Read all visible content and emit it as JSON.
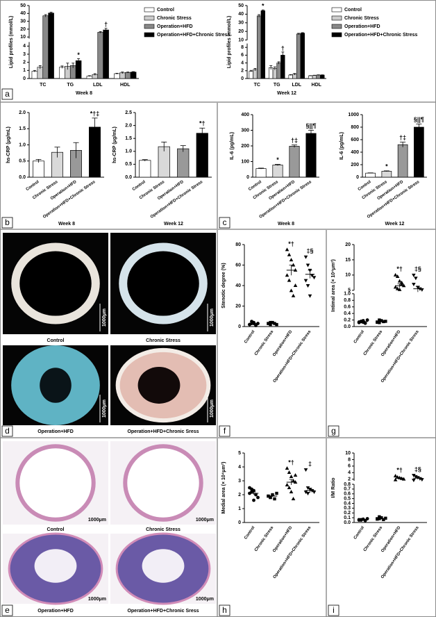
{
  "figure": {
    "panel_letters": [
      "a",
      "b",
      "c",
      "d",
      "e",
      "f",
      "g",
      "h",
      "i"
    ],
    "photos": [
      {
        "caption": "Control",
        "scale_bar": "1000μm"
      },
      {
        "caption": "Chronic Stress",
        "scale_bar": "1000μm"
      },
      {
        "caption": "Operation+HFD",
        "scale_bar": "1000μm"
      },
      {
        "caption": "Operation+HFD+Chronic Sress",
        "scale_bar": "1000μm"
      },
      {
        "caption": "Control",
        "scale_bar": "1000μm"
      },
      {
        "caption": "Chronic Stress",
        "scale_bar": "1000μm"
      },
      {
        "caption": "Operation+HFD",
        "scale_bar": "1000μm"
      },
      {
        "caption": "Operation+HFD+Chronic Sress",
        "scale_bar": "1000μm"
      }
    ]
  },
  "chart_data": [
    {
      "type": "grouped_bar",
      "ylabel": "Lipid profiles (mmol/L)",
      "xlabel": "Week 8",
      "categories": [
        "TC",
        "TG",
        "LDL",
        "HDL"
      ],
      "ylim": [
        0,
        50
      ],
      "axis_break": [
        4.5,
        8
      ],
      "yticks": [
        0,
        1,
        2,
        3,
        4,
        10,
        20,
        30,
        40,
        50
      ],
      "legend": "right",
      "series": [
        {
          "name": "Control",
          "color": "#ffffff",
          "values": [
            0.9,
            1.4,
            0.3,
            0.6
          ],
          "errors": [
            0.1,
            0.15,
            0.05,
            0.05
          ]
        },
        {
          "name": "Chronic Stress",
          "color": "#cccccc",
          "values": [
            1.4,
            1.5,
            0.5,
            0.7
          ],
          "errors": [
            0.2,
            0.4,
            0.1,
            0.1
          ]
        },
        {
          "name": "Operation+HFD",
          "color": "#888888",
          "values": [
            37,
            1.6,
            16,
            0.75
          ],
          "errors": [
            1.5,
            0.3,
            1,
            0.05
          ]
        },
        {
          "name": "Operation+HFD+Chronic Stress",
          "color": "#000000",
          "values": [
            40.5,
            2.2,
            19,
            0.8
          ],
          "errors": [
            1,
            0.25,
            2,
            0.05
          ],
          "annotations": [
            null,
            "*",
            "†",
            null
          ]
        }
      ]
    },
    {
      "type": "grouped_bar",
      "ylabel": "Lipid profiles (mmol/L)",
      "xlabel": "Week 12",
      "categories": [
        "TC",
        "TG",
        "LDL",
        "HDL"
      ],
      "ylim": [
        0,
        50
      ],
      "axis_break": [
        9,
        10
      ],
      "yticks": [
        0,
        2,
        4,
        6,
        8,
        10,
        20,
        30,
        40,
        50
      ],
      "legend": "right",
      "series": [
        {
          "name": "Control",
          "color": "#ffffff",
          "values": [
            1.9,
            2.8,
            0.9,
            0.7
          ],
          "errors": [
            0.2,
            0.5,
            0.1,
            0.05
          ]
        },
        {
          "name": "Chronic Stress",
          "color": "#cccccc",
          "values": [
            2.3,
            2.6,
            1.1,
            0.8
          ],
          "errors": [
            0.3,
            0.4,
            0.2,
            0.05
          ]
        },
        {
          "name": "Operation+HFD",
          "color": "#888888",
          "values": [
            38,
            4.0,
            17,
            0.9
          ],
          "errors": [
            1.5,
            0.3,
            0.8,
            0.05
          ]
        },
        {
          "name": "Operation+HFD+Chronic Stress",
          "color": "#000000",
          "values": [
            44,
            6.0,
            18,
            0.9
          ],
          "errors": [
            1,
            0.8,
            0.6,
            0.05
          ],
          "annotations": [
            "*",
            "†",
            null,
            null
          ]
        }
      ]
    },
    {
      "type": "bar",
      "ylabel": "hs-CRP (μg/mL)",
      "xlabel": "Week 8",
      "categories": [
        "Control",
        "Chronic Stress",
        "Operation+HFD",
        "Operation+HFD+Chronic Stress"
      ],
      "values": [
        0.5,
        0.77,
        0.83,
        1.55
      ],
      "errors": [
        0.05,
        0.16,
        0.24,
        0.28
      ],
      "colors": [
        "#ffffff",
        "#d9d9d9",
        "#999999",
        "#000000"
      ],
      "ylim": [
        0,
        2
      ],
      "yticks": [
        {
          "value": 0,
          "label": "0.0"
        },
        0.5,
        {
          "value": 1,
          "label": "1.0"
        },
        1.5,
        {
          "value": 2,
          "label": "2.0"
        }
      ],
      "annotations": [
        null,
        null,
        null,
        "*†‡"
      ]
    },
    {
      "type": "bar",
      "ylabel": "hs-CRP (μg/mL)",
      "xlabel": "Week 12",
      "categories": [
        "Control",
        "Chronic Stress",
        "Operation+HFD",
        "Operation+HFD+Chronic Stress"
      ],
      "values": [
        0.65,
        1.18,
        1.1,
        1.7
      ],
      "errors": [
        0.03,
        0.18,
        0.12,
        0.2
      ],
      "colors": [
        "#ffffff",
        "#d9d9d9",
        "#999999",
        "#000000"
      ],
      "ylim": [
        0,
        2.5
      ],
      "yticks": [
        {
          "value": 0,
          "label": "0.0"
        },
        0.5,
        {
          "value": 1,
          "label": "1.0"
        },
        1.5,
        {
          "value": 2,
          "label": "2.0"
        },
        2.5
      ],
      "annotations": [
        null,
        null,
        null,
        "*†"
      ]
    },
    {
      "type": "bar",
      "ylabel": "IL-6 (pg/mL)",
      "xlabel": "Week 8",
      "categories": [
        "Control",
        "Chronic Stress",
        "Operation+HFD",
        "Operation+HFD+Chronic Stress"
      ],
      "values": [
        55,
        78,
        198,
        280
      ],
      "errors": [
        3,
        4,
        8,
        20
      ],
      "colors": [
        "#ffffff",
        "#d9d9d9",
        "#999999",
        "#000000"
      ],
      "ylim": [
        0,
        400
      ],
      "yticks": [
        0,
        100,
        200,
        300,
        400
      ],
      "annotations": [
        null,
        "*",
        "†‡",
        "§||¶"
      ]
    },
    {
      "type": "bar",
      "ylabel": "IL-6 (pg/mL)",
      "xlabel": "Week 12",
      "categories": [
        "Control",
        "Chronic Stress",
        "Operation+HFD",
        "Operation+HFD+Chronic Stress"
      ],
      "values": [
        65,
        95,
        520,
        800
      ],
      "errors": [
        4,
        6,
        40,
        50
      ],
      "colors": [
        "#ffffff",
        "#d9d9d9",
        "#999999",
        "#000000"
      ],
      "ylim": [
        0,
        1000
      ],
      "yticks": [
        0,
        200,
        400,
        600,
        800,
        1000
      ],
      "annotations": [
        null,
        "*",
        "†‡",
        "§||¶"
      ]
    },
    {
      "type": "dotplot",
      "ylabel": "Stenotic degree (%)",
      "categories": [
        "Control",
        "Chronic Stress",
        "Operation+HFD",
        "Operation+HFD+Chronic Stress"
      ],
      "color": "#000000",
      "markers": [
        "circle",
        "square",
        "triangle",
        "triangle-down"
      ],
      "ylim": [
        0,
        80
      ],
      "yticks": [
        0,
        20,
        40,
        60,
        80
      ],
      "points": [
        [
          2,
          3,
          4,
          1,
          3,
          2,
          5,
          3
        ],
        [
          3,
          2,
          4,
          3,
          2,
          3,
          4
        ],
        [
          75,
          70,
          65,
          60,
          55,
          50,
          45,
          35,
          30,
          40
        ],
        [
          68,
          60,
          55,
          50,
          48,
          45,
          40,
          30
        ]
      ],
      "means": [
        3,
        3,
        55,
        51
      ],
      "errors": [
        0.5,
        0.5,
        5,
        4
      ],
      "annotations": [
        null,
        null,
        "*†",
        "‡§"
      ]
    },
    {
      "type": "dotplot",
      "ylabel": "Intimal area (× 10⁴μm²)",
      "categories": [
        "Control",
        "Chronic Stress",
        "Operation+HFD",
        "Operation+HFD+Chronic Stress"
      ],
      "color": "#000000",
      "markers": [
        "circle",
        "square",
        "triangle",
        "triangle-down"
      ],
      "ylim": [
        0,
        20
      ],
      "axis_break": [
        1,
        5
      ],
      "yticks": [
        {
          "value": 0,
          "label": "0.0"
        },
        0.2,
        0.4,
        0.6,
        0.8,
        {
          "value": 1,
          "label": "1.0"
        },
        5,
        10,
        15,
        20
      ],
      "points": [
        [
          0.12,
          0.15,
          0.18,
          0.1,
          0.2,
          0.14,
          0.16,
          0.13
        ],
        [
          0.14,
          0.12,
          0.18,
          0.15,
          0.16,
          0.13,
          0.2
        ],
        [
          10,
          9.5,
          8,
          7.5,
          6.5,
          6,
          5.5,
          5.2,
          7
        ],
        [
          10,
          9,
          6,
          5.5,
          5.2,
          7
        ]
      ],
      "means": [
        0.15,
        0.15,
        6.5,
        5.5
      ],
      "errors": [
        0.01,
        0.01,
        0.6,
        0.8
      ],
      "annotations": [
        null,
        null,
        "*†",
        "‡§"
      ]
    },
    {
      "type": "dotplot",
      "ylabel": "Medial area (× 10⁴μm²)",
      "categories": [
        "Control",
        "Chronic Stress",
        "Operation+HFD",
        "Operation+HFD+Chronic Stress"
      ],
      "color": "#000000",
      "markers": [
        "circle",
        "square",
        "triangle",
        "triangle-down"
      ],
      "ylim": [
        0,
        5
      ],
      "yticks": [
        0,
        1,
        2,
        3,
        4,
        5
      ],
      "points": [
        [
          2.1,
          2.2,
          2.3,
          2,
          1.8,
          2.5,
          2.4,
          1.6
        ],
        [
          1.9,
          1.8,
          2,
          1.7,
          2.1,
          1.9,
          1.8
        ],
        [
          3.9,
          3.6,
          3.3,
          3,
          2.9,
          2.7,
          2.5,
          2.2,
          1.7,
          3.4
        ],
        [
          3.8,
          2.5,
          2.4,
          2.3,
          2.2,
          2.2,
          2.1
        ]
      ],
      "means": [
        2.1,
        1.9,
        2.9,
        2.3
      ],
      "errors": [
        0.1,
        0.05,
        0.2,
        0.15
      ],
      "annotations": [
        null,
        null,
        "*†",
        "‡"
      ]
    },
    {
      "type": "dotplot",
      "ylabel": "I/M Ratio",
      "categories": [
        "Control",
        "Chronic Stress",
        "Operation+HFD",
        "Operation+HFD+Chronic Stress"
      ],
      "color": "#000000",
      "markers": [
        "circle",
        "square",
        "triangle",
        "triangle-down"
      ],
      "ylim": [
        0,
        10
      ],
      "axis_break": [
        0.8,
        1.5
      ],
      "yticks": [
        {
          "value": 0,
          "label": "0.0"
        },
        0.1,
        0.2,
        0.3,
        0.4,
        0.5,
        0.6,
        0.7,
        0.8,
        2,
        4,
        6,
        8,
        10
      ],
      "points": [
        [
          0.05,
          0.06,
          0.07,
          0.04,
          0.08,
          0.06,
          0.05
        ],
        [
          0.07,
          0.08,
          0.1,
          0.06,
          0.09,
          0.08,
          0.12
        ],
        [
          3,
          2.6,
          2.4,
          2.2,
          2,
          1.8
        ],
        [
          3.2,
          2.8,
          2.5,
          2.2,
          1.9,
          1.7
        ]
      ],
      "means": [
        0.06,
        0.08,
        2.3,
        2.3
      ],
      "errors": [
        0.005,
        0.008,
        0.2,
        0.25
      ],
      "annotations": [
        null,
        null,
        "*†",
        "‡§"
      ]
    }
  ]
}
